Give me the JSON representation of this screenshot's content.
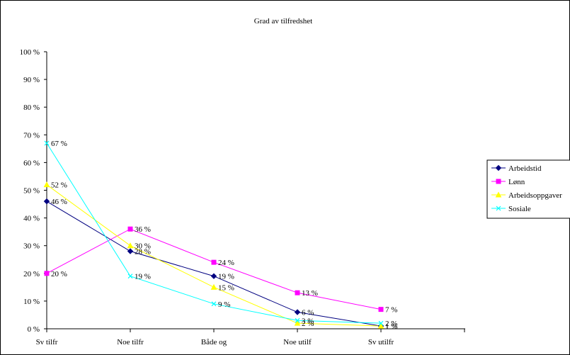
{
  "chart_data": {
    "type": "line",
    "title": "Grad av tilfredshet",
    "categories": [
      "Sv tilfr",
      "Noe tilfr",
      "Både og",
      "Noe utilf",
      "Sv utilfr"
    ],
    "ylim": [
      0,
      100
    ],
    "yticks": [
      0,
      10,
      20,
      30,
      40,
      50,
      60,
      70,
      80,
      90,
      100
    ],
    "ytick_labels": [
      "0 %",
      "10 %",
      "20 %",
      "30 %",
      "40 %",
      "50 %",
      "60 %",
      "70 %",
      "80 %",
      "90 %",
      "100 %"
    ],
    "grid": false,
    "legend_position": "right",
    "series": [
      {
        "name": "Arbeidstid",
        "color": "#000080",
        "marker": "diamond",
        "values": [
          46,
          28,
          19,
          6,
          1
        ],
        "labels": [
          "46 %",
          "28 %",
          "19 %",
          "6 %",
          "1 %"
        ]
      },
      {
        "name": "Lønn",
        "color": "#ff00ff",
        "marker": "square",
        "values": [
          20,
          36,
          24,
          13,
          7
        ],
        "labels": [
          "20 %",
          "36 %",
          "24 %",
          "13 %",
          "7 %"
        ]
      },
      {
        "name": "Arbeidsoppgaver",
        "color": "#ffff00",
        "marker": "triangle",
        "values": [
          52,
          30,
          15,
          2,
          1
        ],
        "labels": [
          "52 %",
          "30 %",
          "15 %",
          "2 %",
          "1 %"
        ]
      },
      {
        "name": "Sosiale",
        "color": "#00ffff",
        "marker": "x",
        "values": [
          67,
          19,
          9,
          3,
          2
        ],
        "labels": [
          "67 %",
          "19 %",
          "9 %",
          "3 %",
          "2 %"
        ]
      }
    ]
  }
}
